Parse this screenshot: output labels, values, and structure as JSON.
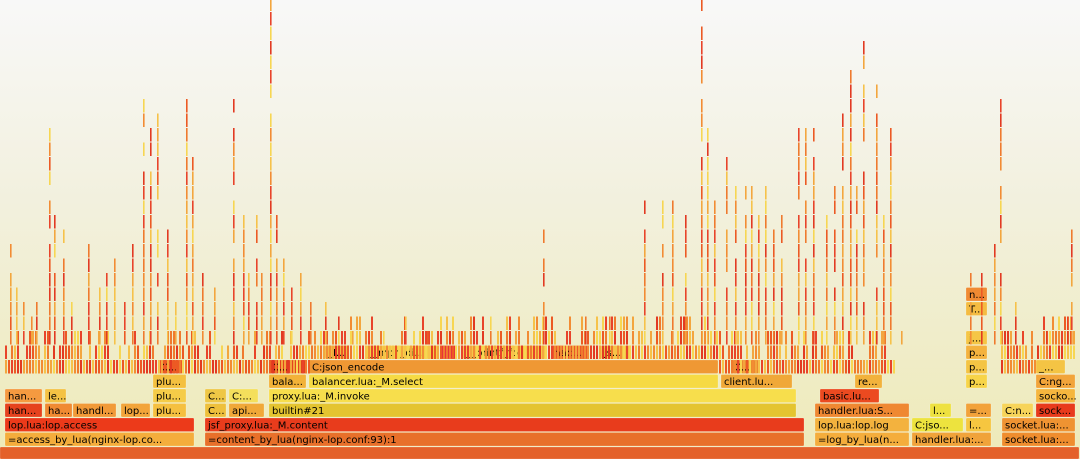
{
  "chart_data": {
    "type": "flamegraph",
    "total_width": 1080,
    "max_depth": 28,
    "frames": [
      {
        "name": "",
        "x": 0,
        "w": 1080,
        "d": 0,
        "c": "#e4612a"
      },
      {
        "name": "=access_by_lua(nginx-lop.co...",
        "x": 5,
        "w": 190,
        "d": 1,
        "c": "#f4ad3c"
      },
      {
        "name": "=content_by_lua(nginx-lop.conf:93):1",
        "x": 205,
        "w": 600,
        "d": 1,
        "c": "#e8702a"
      },
      {
        "name": "=log_by_lua(n...",
        "x": 815,
        "w": 95,
        "d": 1,
        "c": "#f4ad3c"
      },
      {
        "name": "handler.lua:...",
        "x": 912,
        "w": 80,
        "d": 1,
        "c": "#f0a33a"
      },
      {
        "name": "socket.lua:...",
        "x": 1002,
        "w": 74,
        "d": 1,
        "c": "#ef8d2e"
      },
      {
        "name": "lop.lua:lop.access",
        "x": 5,
        "w": 190,
        "d": 2,
        "c": "#ec3a1a"
      },
      {
        "name": "jsf_proxy.lua:_M.content",
        "x": 205,
        "w": 600,
        "d": 2,
        "c": "#e83c1c"
      },
      {
        "name": "lop.lua:lop.log",
        "x": 815,
        "w": 95,
        "d": 2,
        "c": "#f3b23e"
      },
      {
        "name": "C:jso...",
        "x": 912,
        "w": 52,
        "d": 2,
        "c": "#ede33e"
      },
      {
        "name": "l...",
        "x": 966,
        "w": 26,
        "d": 2,
        "c": "#f6c640"
      },
      {
        "name": "socket.lua:...",
        "x": 1002,
        "w": 74,
        "d": 2,
        "c": "#ef9332"
      },
      {
        "name": "han...",
        "x": 5,
        "w": 38,
        "d": 3,
        "c": "#e6421e"
      },
      {
        "name": "ha...",
        "x": 45,
        "w": 28,
        "d": 3,
        "c": "#f08a32"
      },
      {
        "name": "handl...",
        "x": 73,
        "w": 44,
        "d": 3,
        "c": "#f19a38"
      },
      {
        "name": "lop...",
        "x": 121,
        "w": 30,
        "d": 3,
        "c": "#f2a43a"
      },
      {
        "name": "plu...",
        "x": 153,
        "w": 34,
        "d": 3,
        "c": "#f5c040"
      },
      {
        "name": "C...",
        "x": 205,
        "w": 22,
        "d": 3,
        "c": "#eec03c"
      },
      {
        "name": "api...",
        "x": 229,
        "w": 36,
        "d": 3,
        "c": "#f0a838"
      },
      {
        "name": "builtin#21",
        "x": 269,
        "w": 528,
        "d": 3,
        "c": "#e4c430"
      },
      {
        "name": "handler.lua:S...",
        "x": 815,
        "w": 95,
        "d": 3,
        "c": "#ef8832"
      },
      {
        "name": "l...",
        "x": 930,
        "w": 22,
        "d": 3,
        "c": "#eee140"
      },
      {
        "name": "=...",
        "x": 966,
        "w": 26,
        "d": 3,
        "c": "#f2a23a"
      },
      {
        "name": "C:n...",
        "x": 1002,
        "w": 32,
        "d": 3,
        "c": "#f7d45a"
      },
      {
        "name": "sock...",
        "x": 1036,
        "w": 40,
        "d": 3,
        "c": "#e83a1c"
      },
      {
        "name": "han...",
        "x": 5,
        "w": 38,
        "d": 4,
        "c": "#f59a40"
      },
      {
        "name": "le...",
        "x": 45,
        "w": 22,
        "d": 4,
        "c": "#f4c244"
      },
      {
        "name": "plu...",
        "x": 153,
        "w": 34,
        "d": 4,
        "c": "#f5cc48"
      },
      {
        "name": "C...",
        "x": 205,
        "w": 22,
        "d": 4,
        "c": "#eec746"
      },
      {
        "name": "C:...",
        "x": 229,
        "w": 30,
        "d": 4,
        "c": "#f4df5c"
      },
      {
        "name": "C:...",
        "x": 269,
        "w": 30,
        "d": 4,
        "c": "#f6e258"
      },
      {
        "name": "proxy.lua:_M.invoke",
        "x": 269,
        "w": 528,
        "d": 4,
        "c": "#f7de4c"
      },
      {
        "name": "basic.lu...",
        "x": 820,
        "w": 60,
        "d": 4,
        "c": "#ec4a20"
      },
      {
        "name": "socko...",
        "x": 1036,
        "w": 40,
        "d": 4,
        "c": "#f5b63e"
      },
      {
        "name": "plu...",
        "x": 153,
        "w": 34,
        "d": 5,
        "c": "#f4c040"
      },
      {
        "name": "bala...",
        "x": 269,
        "w": 38,
        "d": 5,
        "c": "#f2b238"
      },
      {
        "name": "balancer.lua:_M.select",
        "x": 309,
        "w": 410,
        "d": 5,
        "c": "#f6da44"
      },
      {
        "name": "client.lu...",
        "x": 721,
        "w": 72,
        "d": 5,
        "c": "#f0a838"
      },
      {
        "name": "re...",
        "x": 855,
        "w": 28,
        "d": 5,
        "c": "#f2b23c"
      },
      {
        "name": "p...",
        "x": 966,
        "w": 22,
        "d": 5,
        "c": "#f7d448"
      },
      {
        "name": "C:ng...",
        "x": 1036,
        "w": 40,
        "d": 5,
        "c": "#f2a43a"
      },
      {
        "name": "C...",
        "x": 158,
        "w": 26,
        "d": 6,
        "c": "#ed5a24"
      },
      {
        "name": "C...",
        "x": 269,
        "w": 38,
        "d": 6,
        "c": "#e4421e"
      },
      {
        "name": "C:json_encode",
        "x": 309,
        "w": 410,
        "d": 6,
        "c": "#ef9834"
      },
      {
        "name": "C...",
        "x": 731,
        "w": 30,
        "d": 6,
        "c": "#ec8a30"
      },
      {
        "name": "p...",
        "x": 966,
        "w": 22,
        "d": 6,
        "c": "#f4c444"
      },
      {
        "name": "_...",
        "x": 1036,
        "w": 30,
        "d": 6,
        "c": "#f4c444"
      },
      {
        "name": "_I...",
        "x": 325,
        "w": 24,
        "d": 7,
        "c": "#f0bc40"
      },
      {
        "name": "__mpn_di...",
        "x": 365,
        "w": 74,
        "d": 7,
        "c": "#f4d046"
      },
      {
        "name": "",
        "x": 441,
        "w": 16,
        "d": 7,
        "c": "#e8333a"
      },
      {
        "name": "__printf_fp",
        "x": 463,
        "w": 84,
        "d": 7,
        "c": "#f6c848"
      },
      {
        "name": "hac...",
        "x": 551,
        "w": 38,
        "d": 7,
        "c": "#ec5a2a"
      },
      {
        "name": "js...",
        "x": 601,
        "w": 30,
        "d": 7,
        "c": "#f3c446"
      },
      {
        "name": "p...",
        "x": 966,
        "w": 22,
        "d": 7,
        "c": "#f4b23e"
      },
      {
        "name": "j...",
        "x": 966,
        "w": 22,
        "d": 8,
        "c": "#f5c646"
      },
      {
        "name": "T...",
        "x": 966,
        "w": 22,
        "d": 10,
        "c": "#f4bc42"
      },
      {
        "name": "n...",
        "x": 966,
        "w": 22,
        "d": 11,
        "c": "#f08a32"
      }
    ]
  }
}
